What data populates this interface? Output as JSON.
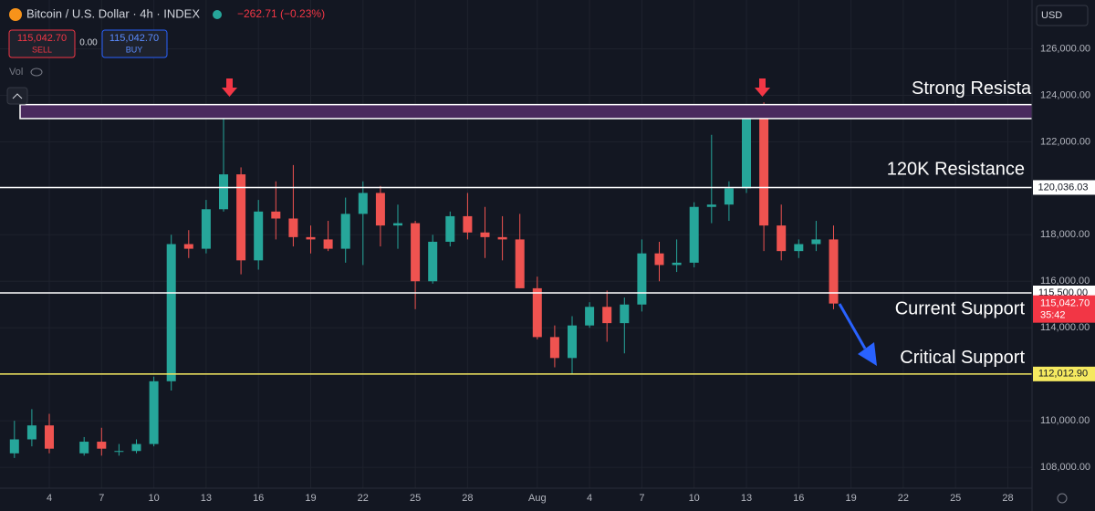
{
  "chart_data": {
    "type": "candlestick",
    "title": "Bitcoin / U.S. Dollar · 4h · INDEX",
    "change": "−262.71 (−0.23%)",
    "categories": [
      null,
      null,
      null,
      "4",
      null,
      null,
      "7",
      null,
      null,
      "10",
      null,
      null,
      "13",
      null,
      null,
      "16",
      null,
      null,
      "19",
      null,
      null,
      "22",
      null,
      null,
      "25",
      null,
      null,
      "28",
      null,
      null,
      null,
      "Aug",
      null,
      null,
      "4",
      null,
      null,
      "7",
      null,
      null,
      "10",
      null,
      null,
      "13",
      null,
      null,
      "16",
      null,
      null,
      "19",
      null,
      null,
      "22",
      null,
      null,
      "25",
      null,
      null,
      "28",
      null
    ],
    "open": [
      null,
      108600,
      109200,
      109800,
      null,
      108600,
      109100,
      108700,
      108700,
      109000,
      111700,
      117600,
      117400,
      119100,
      120600,
      116900,
      119000,
      118700,
      117900,
      117800,
      117400,
      118900,
      119800,
      118400,
      118500,
      116000,
      117700,
      118800,
      118100,
      117900,
      117800,
      115700,
      113600,
      112700,
      114100,
      114900,
      114200,
      115000,
      117200,
      116700,
      116800,
      119200,
      119300,
      120000,
      123400,
      118400,
      117300,
      117600,
      117800,
      null,
      null,
      null,
      null,
      null,
      null,
      null,
      null,
      null,
      null,
      null
    ],
    "high": [
      null,
      110000,
      110500,
      110300,
      null,
      109300,
      109700,
      109000,
      109200,
      111900,
      118000,
      118200,
      119500,
      123200,
      120900,
      119500,
      120300,
      121000,
      118400,
      118600,
      119600,
      120300,
      120100,
      119300,
      118600,
      118000,
      119000,
      119800,
      119200,
      118800,
      118900,
      116200,
      114100,
      114500,
      115100,
      115600,
      115300,
      117800,
      117700,
      117800,
      119400,
      122300,
      120300,
      123600,
      123700,
      119300,
      117800,
      118600,
      118400,
      null,
      null,
      null,
      null,
      null,
      null,
      null,
      null,
      null,
      null,
      null
    ],
    "low": [
      null,
      108400,
      108900,
      108600,
      null,
      108500,
      108500,
      108500,
      108600,
      108900,
      111300,
      117000,
      117200,
      119000,
      116300,
      116500,
      117800,
      117500,
      117200,
      117300,
      116800,
      116700,
      117500,
      117400,
      114800,
      115900,
      117500,
      117800,
      117000,
      116900,
      115700,
      113500,
      112300,
      112000,
      114000,
      113400,
      112900,
      114700,
      116000,
      116400,
      116600,
      118500,
      118600,
      119800,
      117300,
      116900,
      117000,
      117300,
      114800,
      null,
      null,
      null,
      null,
      null,
      null,
      null,
      null,
      null,
      null,
      null
    ],
    "close": [
      null,
      109200,
      109800,
      108800,
      null,
      109100,
      108800,
      108700,
      109000,
      111700,
      117600,
      117400,
      119100,
      120600,
      116900,
      119000,
      118700,
      117900,
      117800,
      117400,
      118900,
      119800,
      118400,
      118500,
      116000,
      117700,
      118800,
      118100,
      117900,
      117800,
      115700,
      113600,
      112700,
      114100,
      114900,
      114200,
      115000,
      117200,
      116700,
      116800,
      119200,
      119300,
      120000,
      123400,
      118400,
      117300,
      117600,
      117800,
      115042.7,
      null,
      null,
      null,
      null,
      null,
      null,
      null,
      null,
      null,
      null,
      null
    ],
    "up_color": "#26a69a",
    "down_color": "#ef5350",
    "ylim": [
      107100,
      128100
    ],
    "yticks": [
      {
        "value": 108000,
        "label": "108,000.00"
      },
      {
        "value": 110000,
        "label": "110,000.00"
      },
      {
        "value": 112000,
        "label": "112,000.00"
      },
      {
        "value": 114000,
        "label": "114,000.00"
      },
      {
        "value": 116000,
        "label": "116,000.00"
      },
      {
        "value": 118000,
        "label": "118,000.00"
      },
      {
        "value": 120000,
        "label": "120,000.00"
      },
      {
        "value": 122000,
        "label": "122,000.00"
      },
      {
        "value": 124000,
        "label": "124,000.00"
      },
      {
        "value": 126000,
        "label": "126,000.00"
      }
    ],
    "grid": true,
    "zone": {
      "label": "Strong Resistance",
      "low": 123000,
      "high": 123600,
      "color": "#4a2a5e"
    },
    "levels": [
      {
        "value": 120036.03,
        "label": "120,036.03",
        "name": "120K Resistance",
        "color": "#ffffff"
      },
      {
        "value": 115500,
        "label": "115,500.00",
        "name": "Current Support",
        "color": "#ffffff"
      },
      {
        "value": 112012.9,
        "label": "112,012.90",
        "name": "Critical Support",
        "color": "#f5e960"
      }
    ],
    "last": {
      "value": 115042.7,
      "label": "115,042.70",
      "countdown": "35:42",
      "color": "#f23645"
    }
  },
  "toolbar": {
    "sell_price": "115,042.70",
    "sell": "SELL",
    "spread": "0.00",
    "buy_price": "115,042.70",
    "buy": "BUY",
    "vol": "Vol",
    "currency": "USD"
  }
}
